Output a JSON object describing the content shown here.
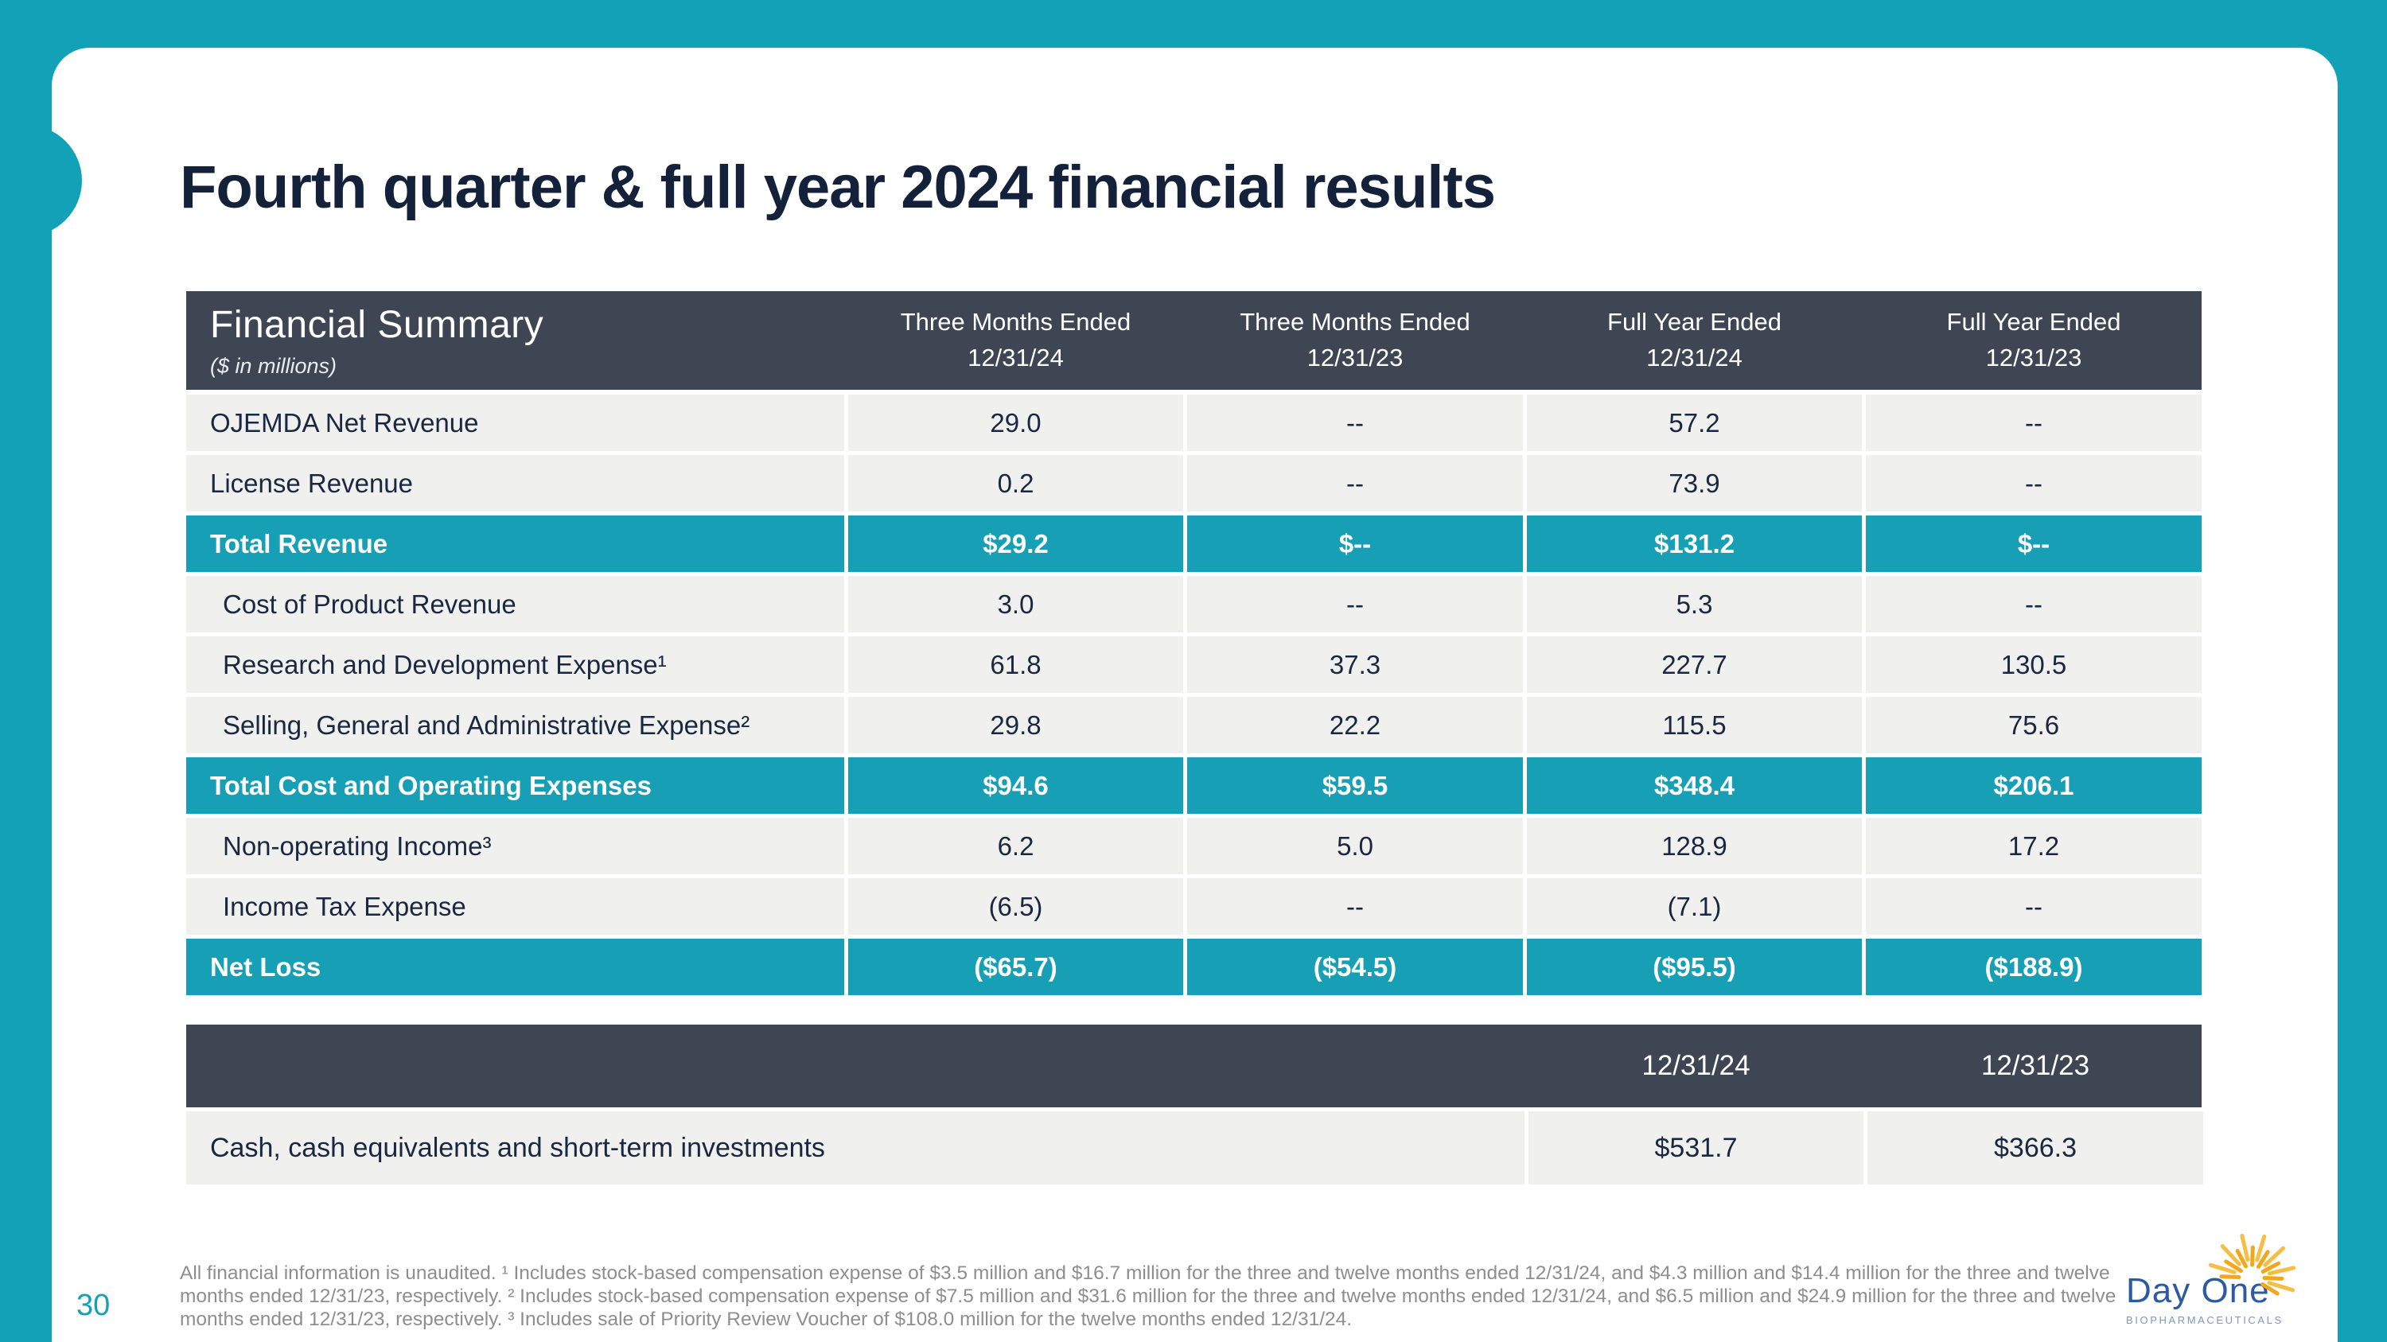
{
  "slide": {
    "title": "Fourth quarter & full year 2024 financial results",
    "page_number": "30"
  },
  "table1": {
    "header": {
      "title": "Financial Summary",
      "subtitle": "($ in millions)",
      "columns": [
        "Three Months Ended\n12/31/24",
        "Three Months Ended\n12/31/23",
        "Full Year Ended\n12/31/24",
        "Full Year Ended\n12/31/23"
      ]
    },
    "rows": [
      {
        "label": "OJEMDA Net Revenue",
        "values": [
          "29.0",
          "--",
          "57.2",
          "--"
        ]
      },
      {
        "label": "License Revenue",
        "values": [
          "0.2",
          "--",
          "73.9",
          "--"
        ]
      },
      {
        "label": "Total Revenue",
        "values": [
          "$29.2",
          "$--",
          "$131.2",
          "$--"
        ]
      },
      {
        "label": "Cost of Product Revenue",
        "values": [
          "3.0",
          "--",
          "5.3",
          "--"
        ]
      },
      {
        "label": "Research and Development Expense¹",
        "values": [
          "61.8",
          "37.3",
          "227.7",
          "130.5"
        ]
      },
      {
        "label": "Selling, General and Administrative Expense²",
        "values": [
          "29.8",
          "22.2",
          "115.5",
          "75.6"
        ]
      },
      {
        "label": "Total Cost and Operating Expenses",
        "values": [
          "$94.6",
          "$59.5",
          "$348.4",
          "$206.1"
        ]
      },
      {
        "label": "Non-operating Income³",
        "values": [
          "6.2",
          "5.0",
          "128.9",
          "17.2"
        ]
      },
      {
        "label": "Income Tax Expense",
        "values": [
          "(6.5)",
          "--",
          "(7.1)",
          "--"
        ]
      },
      {
        "label": "Net Loss",
        "values": [
          "($65.7)",
          "($54.5)",
          "($95.5)",
          "($188.9)"
        ]
      }
    ]
  },
  "table2": {
    "columns": [
      "12/31/24",
      "12/31/23"
    ],
    "rows": [
      {
        "label": "Cash, cash equivalents and short-term investments",
        "values": [
          "$531.7",
          "$366.3"
        ]
      }
    ]
  },
  "footnote": "All financial information is unaudited. ¹ Includes stock-based compensation expense of $3.5 million and $16.7 million for the three and twelve months ended 12/31/24, and $4.3 million and $14.4 million for the three and twelve months ended 12/31/23, respectively. ² Includes stock-based compensation expense of $7.5 million and $31.6 million for the three and twelve months ended 12/31/24, and $6.5 million and $24.9 million for the three and twelve months ended 12/31/23, respectively. ³ Includes sale of Priority Review Voucher of $108.0 million for the twelve months ended 12/31/24.",
  "logo": {
    "name": "Day One",
    "tagline": "BIOPHARMACEUTICALS"
  },
  "colors": {
    "accent_teal": "#12A1B6",
    "total_row_teal": "#17A0B5",
    "header_slate": "#3D4652",
    "row_light": "#F0F0EE",
    "text_navy": "#1A2740",
    "footnote_gray": "#8E8E8E",
    "logo_blue": "#2E5AA2",
    "sun_gold": "#F2A81D"
  }
}
